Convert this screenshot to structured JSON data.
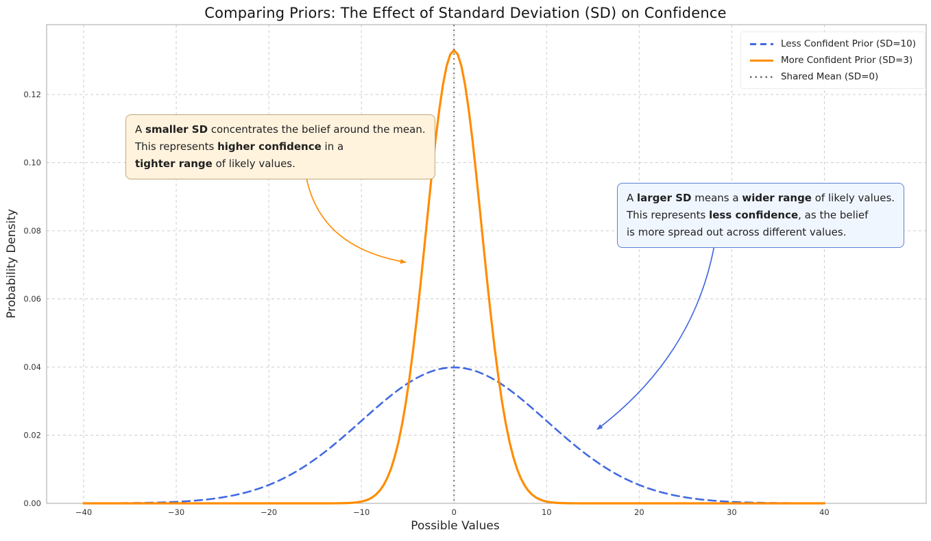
{
  "chart_data": {
    "type": "line",
    "title": "Comparing Priors: The Effect of Standard Deviation (SD) on Confidence",
    "xlabel": "Possible Values",
    "ylabel": "Probability Density",
    "xlim": [
      -44,
      51
    ],
    "ylim": [
      0,
      0.1405
    ],
    "x_ticks": [
      -40,
      -30,
      -20,
      -10,
      0,
      10,
      20,
      30,
      40
    ],
    "x_tick_labels": [
      "−40",
      "−30",
      "−20",
      "−10",
      "0",
      "10",
      "20",
      "30",
      "40"
    ],
    "y_ticks": [
      0,
      0.02,
      0.04,
      0.06,
      0.08,
      0.1,
      0.12
    ],
    "y_tick_labels": [
      "0.00",
      "0.02",
      "0.04",
      "0.06",
      "0.08",
      "0.10",
      "0.12"
    ],
    "grid": true,
    "legend_position": "upper right",
    "series": [
      {
        "slug": "less-confident-prior",
        "name": "Less Confident Prior (SD=10)",
        "kind": "curve",
        "distribution": "normal",
        "mean": 0,
        "sd": 10,
        "peak_density": 0.0399,
        "color": "#4169E1",
        "style": "dashed",
        "x_range": [
          -40,
          40
        ]
      },
      {
        "slug": "more-confident-prior",
        "name": "More Confident Prior (SD=3)",
        "kind": "curve",
        "distribution": "normal",
        "mean": 0,
        "sd": 3,
        "peak_density": 0.133,
        "color": "#FF8C00",
        "style": "solid",
        "x_range": [
          -40,
          40
        ]
      },
      {
        "slug": "shared-mean",
        "name": "Shared Mean (SD=0)",
        "kind": "vline",
        "x": 0,
        "color": "#808080",
        "style": "dotted"
      }
    ]
  },
  "annotations": [
    {
      "slug": "smaller-sd-note",
      "lines": [
        [
          {
            "t": "A "
          },
          {
            "t": "smaller SD",
            "b": true
          },
          {
            "t": " concentrates the belief around the mean."
          }
        ],
        [
          {
            "t": "This represents "
          },
          {
            "t": "higher confidence",
            "b": true
          },
          {
            "t": " in a"
          }
        ],
        [
          {
            "t": "tighter range",
            "b": true
          },
          {
            "t": " of likely values."
          }
        ]
      ],
      "box_fill": "#FFF3DE",
      "box_border": "#BFA77A",
      "arrow_color": "#FF8C00",
      "arrow": {
        "from": [
          447,
          260
        ],
        "ctrl": [
          468,
          362
        ],
        "to": [
          592,
          383
        ]
      }
    },
    {
      "slug": "larger-sd-note",
      "lines": [
        [
          {
            "t": "A "
          },
          {
            "t": "larger SD",
            "b": true
          },
          {
            "t": " means a "
          },
          {
            "t": "wider range",
            "b": true
          },
          {
            "t": " of likely values."
          }
        ],
        [
          {
            "t": "This represents "
          },
          {
            "t": "less confidence",
            "b": true
          },
          {
            "t": ", as the belief"
          }
        ],
        [
          {
            "t": "is more spread out across different values."
          }
        ]
      ],
      "box_fill": "#F0F6FF",
      "box_border": "#5B7FD4",
      "arrow_color": "#4169E1",
      "arrow": {
        "from": [
          1042,
          358
        ],
        "ctrl": [
          1012,
          520
        ],
        "to": [
          871,
          627
        ]
      }
    }
  ]
}
